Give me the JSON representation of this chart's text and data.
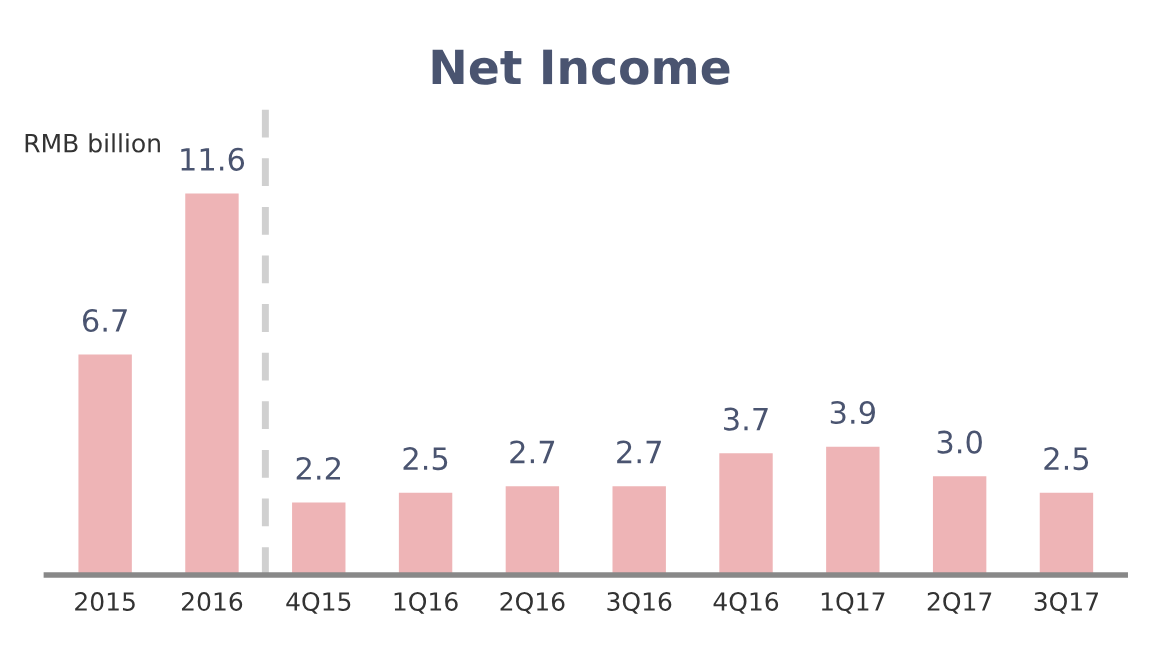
{
  "chart_data": {
    "type": "bar",
    "title": "Net Income",
    "ylabel": "RMB billion",
    "categories": [
      "2015",
      "2016",
      "4Q15",
      "1Q16",
      "2Q16",
      "3Q16",
      "4Q16",
      "1Q17",
      "2Q17",
      "3Q17"
    ],
    "values": [
      6.7,
      11.6,
      2.2,
      2.5,
      2.7,
      2.7,
      3.7,
      3.9,
      3.0,
      2.5
    ],
    "value_labels": [
      "6.7",
      "11.6",
      "2.2",
      "2.5",
      "2.7",
      "2.7",
      "3.7",
      "3.9",
      "3.0",
      "2.5"
    ],
    "color": "#eeb4b6",
    "grid": false,
    "legend": false
  }
}
